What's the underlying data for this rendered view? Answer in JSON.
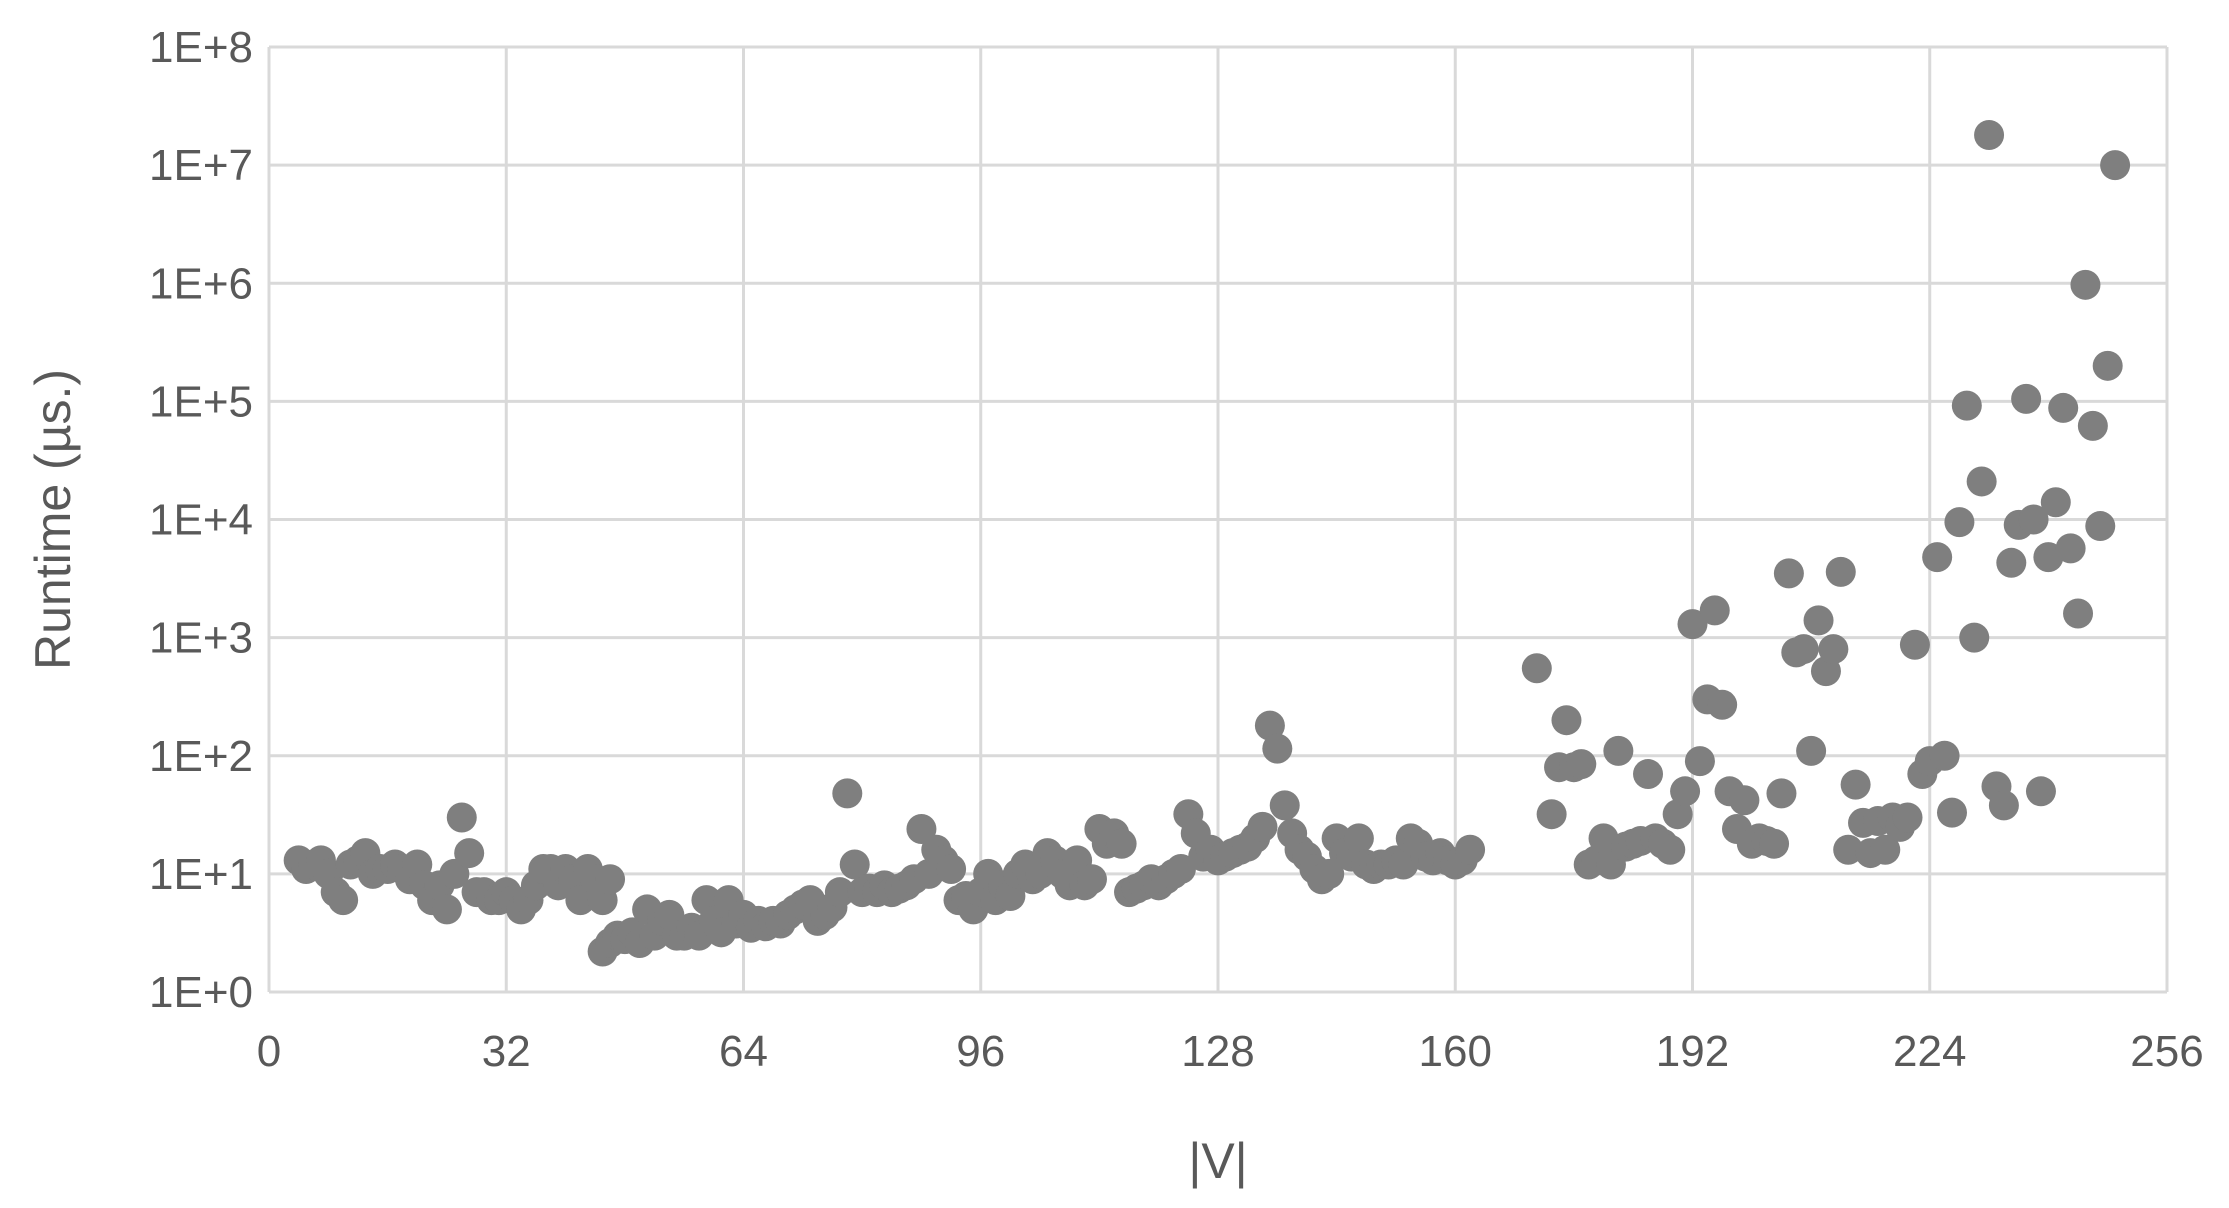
{
  "chart_data": {
    "type": "scatter",
    "xlabel": "|V|",
    "ylabel": "Runtime (µs.)",
    "xlim": [
      0,
      256
    ],
    "ylim": [
      1,
      100000000
    ],
    "yscale": "log",
    "grid": true,
    "x_ticks": [
      "0",
      "32",
      "64",
      "96",
      "128",
      "160",
      "192",
      "224",
      "256"
    ],
    "y_ticks": [
      "1E+0",
      "1E+1",
      "1E+2",
      "1E+3",
      "1E+4",
      "1E+5",
      "1E+6",
      "1E+7",
      "1E+8"
    ],
    "marker_color": "#7f7f7f",
    "points": [
      [
        4,
        13
      ],
      [
        5,
        11
      ],
      [
        6,
        12
      ],
      [
        7,
        13
      ],
      [
        8,
        10
      ],
      [
        9,
        7
      ],
      [
        10,
        6
      ],
      [
        11,
        12
      ],
      [
        12,
        13
      ],
      [
        13,
        15
      ],
      [
        14,
        10
      ],
      [
        15,
        11
      ],
      [
        16,
        11
      ],
      [
        17,
        12
      ],
      [
        18,
        11
      ],
      [
        19,
        9
      ],
      [
        20,
        12
      ],
      [
        21,
        8
      ],
      [
        22,
        6
      ],
      [
        23,
        8
      ],
      [
        24,
        5
      ],
      [
        25,
        10
      ],
      [
        26,
        30
      ],
      [
        27,
        15
      ],
      [
        28,
        7
      ],
      [
        29,
        7
      ],
      [
        30,
        6
      ],
      [
        31,
        6
      ],
      [
        32,
        7
      ],
      [
        33,
        6
      ],
      [
        34,
        5
      ],
      [
        35,
        6
      ],
      [
        36,
        8
      ],
      [
        37,
        11
      ],
      [
        38,
        11
      ],
      [
        39,
        8
      ],
      [
        40,
        11
      ],
      [
        41,
        9
      ],
      [
        42,
        6
      ],
      [
        43,
        11
      ],
      [
        44,
        9
      ],
      [
        45,
        6
      ],
      [
        46,
        9
      ],
      [
        45,
        2.2
      ],
      [
        46,
        2.6
      ],
      [
        47,
        3
      ],
      [
        48,
        2.8
      ],
      [
        49,
        3.2
      ],
      [
        50,
        2.6
      ],
      [
        51,
        5
      ],
      [
        52,
        3
      ],
      [
        53,
        4
      ],
      [
        54,
        4.5
      ],
      [
        55,
        3
      ],
      [
        56,
        3
      ],
      [
        57,
        3.5
      ],
      [
        58,
        3
      ],
      [
        59,
        6
      ],
      [
        60,
        4
      ],
      [
        61,
        3.2
      ],
      [
        62,
        6
      ],
      [
        63,
        3.8
      ],
      [
        64,
        4.5
      ],
      [
        65,
        3.5
      ],
      [
        66,
        4
      ],
      [
        67,
        3.6
      ],
      [
        68,
        4
      ],
      [
        69,
        3.8
      ],
      [
        70,
        4.5
      ],
      [
        71,
        5
      ],
      [
        72,
        5.5
      ],
      [
        73,
        6
      ],
      [
        74,
        4
      ],
      [
        75,
        4.5
      ],
      [
        76,
        5.2
      ],
      [
        77,
        7
      ],
      [
        78,
        48
      ],
      [
        79,
        12
      ],
      [
        80,
        7
      ],
      [
        81,
        7.5
      ],
      [
        82,
        7
      ],
      [
        83,
        8
      ],
      [
        84,
        7
      ],
      [
        85,
        7.5
      ],
      [
        86,
        8
      ],
      [
        87,
        9
      ],
      [
        88,
        24
      ],
      [
        89,
        10
      ],
      [
        90,
        16
      ],
      [
        91,
        13
      ],
      [
        92,
        11
      ],
      [
        93,
        6
      ],
      [
        94,
        6.5
      ],
      [
        95,
        5
      ],
      [
        96,
        7
      ],
      [
        97,
        10
      ],
      [
        98,
        6
      ],
      [
        99,
        8
      ],
      [
        100,
        6.5
      ],
      [
        101,
        10
      ],
      [
        102,
        12
      ],
      [
        103,
        9
      ],
      [
        104,
        10
      ],
      [
        105,
        15
      ],
      [
        106,
        13
      ],
      [
        107,
        10
      ],
      [
        108,
        8
      ],
      [
        109,
        13
      ],
      [
        110,
        8
      ],
      [
        111,
        9
      ],
      [
        112,
        24
      ],
      [
        113,
        18
      ],
      [
        114,
        22
      ],
      [
        115,
        18
      ],
      [
        116,
        7
      ],
      [
        117,
        7.5
      ],
      [
        118,
        8
      ],
      [
        119,
        9
      ],
      [
        120,
        8
      ],
      [
        121,
        9
      ],
      [
        122,
        10
      ],
      [
        123,
        11
      ],
      [
        124,
        32
      ],
      [
        125,
        22
      ],
      [
        126,
        14
      ],
      [
        127,
        16
      ],
      [
        128,
        13
      ],
      [
        129,
        14
      ],
      [
        130,
        15
      ],
      [
        131,
        16
      ],
      [
        132,
        17
      ],
      [
        133,
        20
      ],
      [
        134,
        25
      ],
      [
        135,
        180
      ],
      [
        136,
        115
      ],
      [
        137,
        38
      ],
      [
        138,
        22
      ],
      [
        139,
        16
      ],
      [
        140,
        14
      ],
      [
        141,
        11
      ],
      [
        142,
        9
      ],
      [
        143,
        10
      ],
      [
        144,
        20
      ],
      [
        145,
        15
      ],
      [
        146,
        14
      ],
      [
        147,
        20
      ],
      [
        148,
        12
      ],
      [
        149,
        11
      ],
      [
        150,
        12
      ],
      [
        151,
        12
      ],
      [
        152,
        13
      ],
      [
        153,
        12
      ],
      [
        154,
        20
      ],
      [
        155,
        18
      ],
      [
        156,
        14
      ],
      [
        157,
        13
      ],
      [
        158,
        15
      ],
      [
        159,
        13
      ],
      [
        160,
        12
      ],
      [
        161,
        13
      ],
      [
        162,
        16
      ],
      [
        173,
        32
      ],
      [
        174,
        80
      ],
      [
        175,
        200
      ],
      [
        176,
        80
      ],
      [
        177,
        85
      ],
      [
        178,
        12
      ],
      [
        179,
        13
      ],
      [
        180,
        20
      ],
      [
        181,
        12
      ],
      [
        182,
        110
      ],
      [
        183,
        17
      ],
      [
        184,
        18
      ],
      [
        185,
        19
      ],
      [
        186,
        70
      ],
      [
        187,
        20
      ],
      [
        188,
        18
      ],
      [
        189,
        16
      ],
      [
        190,
        32
      ],
      [
        191,
        50
      ],
      [
        192,
        1300
      ],
      [
        193,
        90
      ],
      [
        194,
        300
      ],
      [
        195,
        1700
      ],
      [
        196,
        270
      ],
      [
        197,
        50
      ],
      [
        198,
        24
      ],
      [
        199,
        42
      ],
      [
        200,
        18
      ],
      [
        201,
        20
      ],
      [
        202,
        19
      ],
      [
        203,
        18
      ],
      [
        204,
        48
      ],
      [
        205,
        3500
      ],
      [
        206,
        750
      ],
      [
        207,
        800
      ],
      [
        208,
        110
      ],
      [
        209,
        1400
      ],
      [
        210,
        520
      ],
      [
        211,
        800
      ],
      [
        212,
        3600
      ],
      [
        213,
        16
      ],
      [
        214,
        57
      ],
      [
        215,
        27
      ],
      [
        216,
        15
      ],
      [
        217,
        28
      ],
      [
        218,
        16
      ],
      [
        219,
        30
      ],
      [
        220,
        25
      ],
      [
        221,
        30
      ],
      [
        222,
        870
      ],
      [
        223,
        70
      ],
      [
        224,
        90
      ],
      [
        225,
        4800
      ],
      [
        226,
        100
      ],
      [
        227,
        33
      ],
      [
        228,
        9500
      ],
      [
        229,
        92000
      ],
      [
        230,
        1000
      ],
      [
        231,
        21000
      ],
      [
        232,
        18000000
      ],
      [
        233,
        55
      ],
      [
        234,
        38
      ],
      [
        235,
        4300
      ],
      [
        236,
        9000
      ],
      [
        237,
        105000
      ],
      [
        238,
        10000
      ],
      [
        239,
        50
      ],
      [
        240,
        4800
      ],
      [
        241,
        14000
      ],
      [
        242,
        88000
      ],
      [
        243,
        5700
      ],
      [
        244,
        1600
      ],
      [
        245,
        970000
      ],
      [
        246,
        62000
      ],
      [
        247,
        8800
      ],
      [
        248,
        200000
      ],
      [
        249,
        10000000
      ],
      [
        171,
        550
      ]
    ]
  }
}
